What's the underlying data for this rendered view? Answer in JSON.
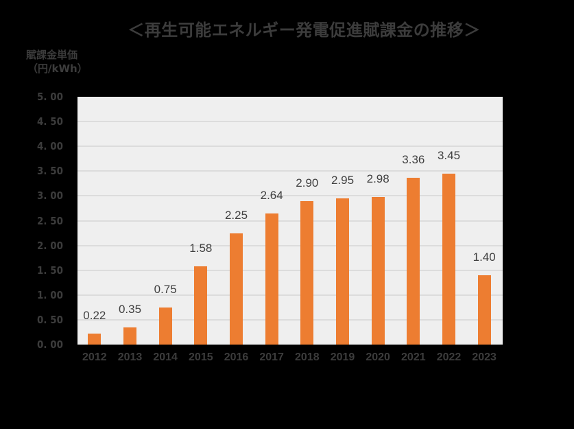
{
  "title": "＜再生可能エネルギー発電促進賦課金の推移＞",
  "y_axis_label_line1": "賦課金単価",
  "y_axis_label_line2": "（円/kWh）",
  "colors": {
    "bar": "#ed7d31",
    "plot_background": "#efefef",
    "gridline": "#dcdcdc",
    "page_background": "#000000"
  },
  "chart_data": {
    "type": "bar",
    "title": "＜再生可能エネルギー発電促進賦課金の推移＞",
    "xlabel": "",
    "ylabel": "賦課金単価（円/kWh）",
    "categories": [
      "2012",
      "2013",
      "2014",
      "2015",
      "2016",
      "2017",
      "2018",
      "2019",
      "2020",
      "2021",
      "2022",
      "2023"
    ],
    "values": [
      0.22,
      0.35,
      0.75,
      1.58,
      2.25,
      2.64,
      2.9,
      2.95,
      2.98,
      3.36,
      3.45,
      1.4
    ],
    "value_labels": [
      "0.22",
      "0.35",
      "0.75",
      "1.58",
      "2.25",
      "2.64",
      "2.90",
      "2.95",
      "2.98",
      "3.36",
      "3.45",
      "1.40"
    ],
    "ylim": [
      0,
      5
    ],
    "yticks": [
      "0.00",
      "0.50",
      "1.00",
      "1.50",
      "2.00",
      "2.50",
      "3.00",
      "3.50",
      "4.00",
      "4.50",
      "5.00"
    ],
    "grid": true,
    "legend": null
  }
}
